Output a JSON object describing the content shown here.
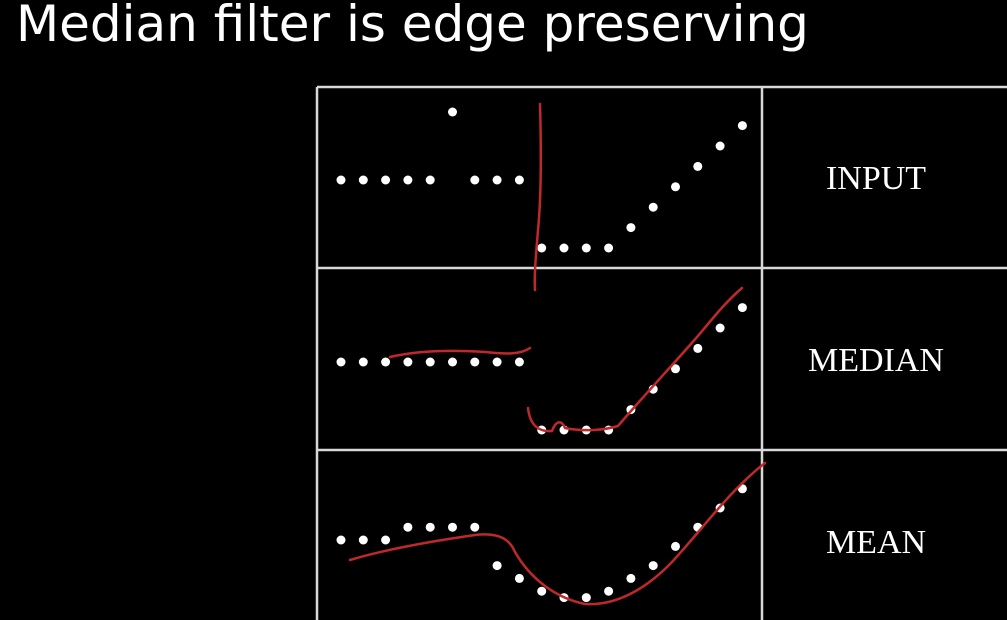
{
  "slide": {
    "title": "Median filter is edge preserving"
  },
  "colors": {
    "background": "#000000",
    "text": "#ffffff",
    "grid": "#d8d8d8",
    "dots": "#ffffff",
    "annotation": "#c0282b"
  },
  "rows": [
    {
      "label": "INPUT",
      "values": [
        0.5,
        0.5,
        0.5,
        0.5,
        0.5,
        1.0,
        0.5,
        0.5,
        0.5,
        0.0,
        0.0,
        0.0,
        0.0,
        0.15,
        0.3,
        0.45,
        0.6,
        0.75,
        0.9
      ]
    },
    {
      "label": "MEDIAN",
      "values": [
        0.5,
        0.5,
        0.5,
        0.5,
        0.5,
        0.5,
        0.5,
        0.5,
        0.5,
        0.0,
        0.0,
        0.0,
        0.0,
        0.15,
        0.3,
        0.45,
        0.6,
        0.75,
        0.9
      ]
    },
    {
      "label": "MEAN",
      "values": [
        0.5,
        0.5,
        0.5,
        0.6,
        0.6,
        0.6,
        0.6,
        0.3,
        0.2,
        0.1,
        0.05,
        0.05,
        0.1,
        0.2,
        0.3,
        0.45,
        0.6,
        0.75,
        0.9
      ]
    }
  ]
}
